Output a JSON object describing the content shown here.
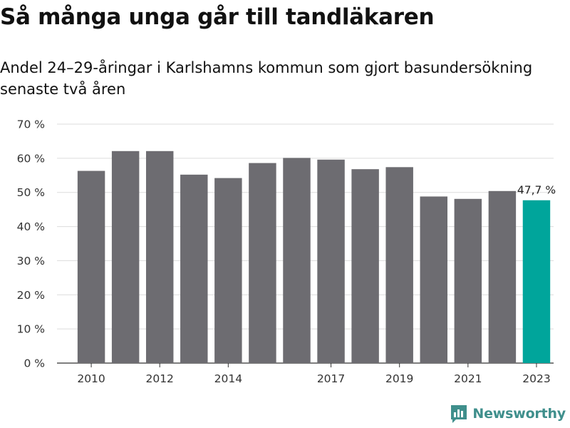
{
  "header": {
    "title": "Så många unga går till tandläkaren",
    "subtitle": "Andel 24–29-åringar i Karlshamns kommun som gjort basundersökning senaste två åren"
  },
  "brand": {
    "name": "Newsworthy",
    "icon": "newsworthy-logo-icon",
    "color": "#3f8f8c"
  },
  "chart_data": {
    "type": "bar",
    "categories": [
      "2010",
      "2011",
      "2012",
      "2013",
      "2014",
      "2015",
      "2016",
      "2017",
      "2018",
      "2019",
      "2020",
      "2021",
      "2022",
      "2023"
    ],
    "x_tick_labels": [
      "2010",
      "",
      "2012",
      "",
      "2014",
      "",
      "",
      "2017",
      "",
      "2019",
      "",
      "2021",
      "",
      "2023"
    ],
    "values": [
      56.3,
      62.1,
      62.1,
      55.2,
      54.2,
      58.6,
      60.1,
      59.6,
      56.8,
      57.4,
      48.8,
      48.1,
      50.4,
      47.7
    ],
    "highlight_index": 13,
    "highlight_label": "47,7 %",
    "y_ticks": [
      0,
      10,
      20,
      30,
      40,
      50,
      60,
      70
    ],
    "y_tick_labels": [
      "0 %",
      "10 %",
      "20 %",
      "30 %",
      "40 %",
      "50 %",
      "60 %",
      "70 %"
    ],
    "ylim": [
      0,
      70
    ],
    "grid": true,
    "colors": {
      "bar": "#6d6c71",
      "highlight": "#00a59b",
      "grid": "#dcdcdc",
      "axis": "#333333"
    }
  }
}
